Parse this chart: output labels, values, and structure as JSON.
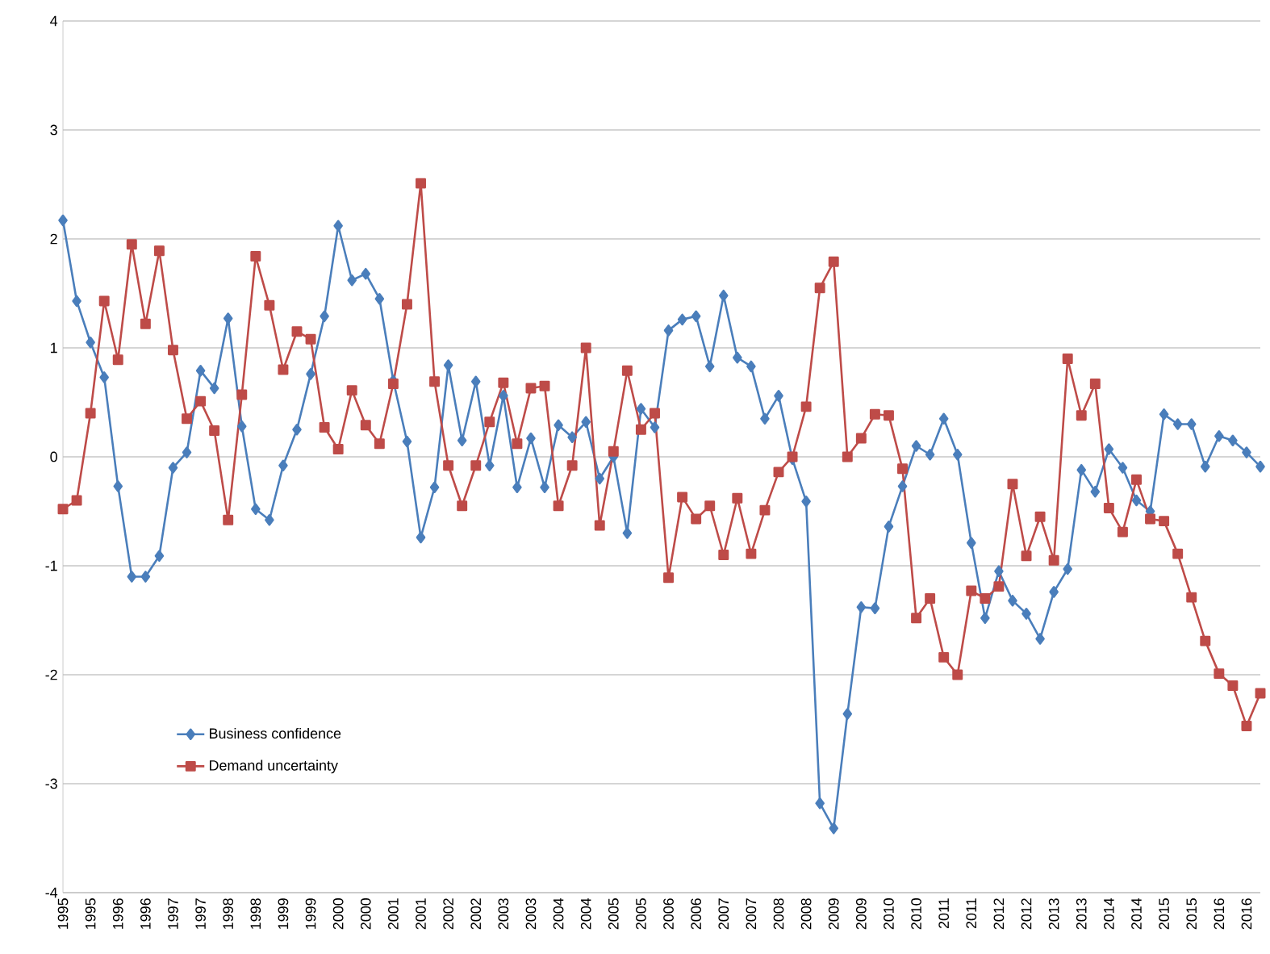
{
  "chart_data": {
    "type": "line",
    "categories": [
      "1995",
      null,
      "1995",
      null,
      "1996",
      null,
      "1996",
      null,
      "1997",
      null,
      "1997",
      null,
      "1998",
      null,
      "1998",
      null,
      "1999",
      null,
      "1999",
      null,
      "2000",
      null,
      "2000",
      null,
      "2001",
      null,
      "2001",
      null,
      "2002",
      null,
      "2002",
      null,
      "2003",
      null,
      "2003",
      null,
      "2004",
      null,
      "2004",
      null,
      "2005",
      null,
      "2005",
      null,
      "2006",
      null,
      "2006",
      null,
      "2007",
      null,
      "2007",
      null,
      "2008",
      null,
      "2008",
      null,
      "2009",
      null,
      "2009",
      null,
      "2010",
      null,
      "2010",
      null,
      "2011",
      null,
      "2011",
      null,
      "2012",
      null,
      "2012",
      null,
      "2013",
      null,
      "2013",
      null,
      "2014",
      null,
      "2014",
      null,
      "2015",
      null,
      "2015",
      null,
      "2016",
      null,
      "2016",
      null
    ],
    "ylim": [
      -4,
      4
    ],
    "yticks": [
      -4,
      -3,
      -2,
      -1,
      0,
      1,
      2,
      3,
      4
    ],
    "grid": "y",
    "legend": "bottom left",
    "line_style": "solid",
    "series": [
      {
        "name": "Business confidence",
        "color": "#4a7ebb",
        "marker": "diamond",
        "values": [
          2.17,
          1.43,
          1.05,
          0.73,
          -0.27,
          -1.1,
          -1.1,
          -0.91,
          -0.1,
          0.04,
          0.79,
          0.63,
          1.27,
          0.28,
          -0.48,
          -0.58,
          -0.08,
          0.25,
          0.76,
          1.29,
          2.12,
          1.62,
          1.68,
          1.45,
          0.7,
          0.14,
          -0.74,
          -0.28,
          0.84,
          0.15,
          0.69,
          -0.08,
          0.56,
          -0.28,
          0.17,
          -0.28,
          0.29,
          0.18,
          0.32,
          -0.2,
          0.0,
          -0.7,
          0.44,
          0.27,
          1.16,
          1.26,
          1.29,
          0.83,
          1.48,
          0.91,
          0.83,
          0.35,
          0.56,
          -0.02,
          -0.41,
          -3.18,
          -3.41,
          -2.36,
          -1.38,
          -1.39,
          -0.64,
          -0.27,
          0.1,
          0.02,
          0.35,
          0.02,
          -0.79,
          -1.48,
          -1.05,
          -1.32,
          -1.44,
          -1.67,
          -1.24,
          -1.03,
          -0.12,
          -0.32,
          0.07,
          -0.1,
          -0.4,
          -0.5,
          0.39,
          0.3,
          0.3,
          -0.09,
          0.19,
          0.15,
          0.04,
          -0.09
        ]
      },
      {
        "name": "Demand uncertainty",
        "color": "#be4b48",
        "marker": "square",
        "values": [
          -0.48,
          -0.4,
          0.4,
          1.43,
          0.89,
          1.95,
          1.22,
          1.89,
          0.98,
          0.35,
          0.51,
          0.24,
          -0.58,
          0.57,
          1.84,
          1.39,
          0.8,
          1.15,
          1.08,
          0.27,
          0.07,
          0.61,
          0.29,
          0.12,
          0.67,
          1.4,
          2.51,
          0.69,
          -0.08,
          -0.45,
          -0.08,
          0.32,
          0.68,
          0.12,
          0.63,
          0.65,
          -0.45,
          -0.08,
          1.0,
          -0.63,
          0.05,
          0.79,
          0.25,
          0.4,
          -1.11,
          -0.37,
          -0.57,
          -0.45,
          -0.9,
          -0.38,
          -0.89,
          -0.49,
          -0.14,
          0.0,
          0.46,
          1.55,
          1.79,
          0.0,
          0.17,
          0.39,
          0.38,
          -0.11,
          -1.48,
          -1.3,
          -1.84,
          -2.0,
          -1.23,
          -1.3,
          -1.19,
          -0.25,
          -0.91,
          -0.55,
          -0.95,
          0.9,
          0.38,
          0.67,
          -0.47,
          -0.69,
          -0.21,
          -0.57,
          -0.59,
          -0.89,
          -1.29,
          -1.69,
          -1.99,
          -2.1,
          -2.47,
          -2.17
        ]
      }
    ]
  }
}
